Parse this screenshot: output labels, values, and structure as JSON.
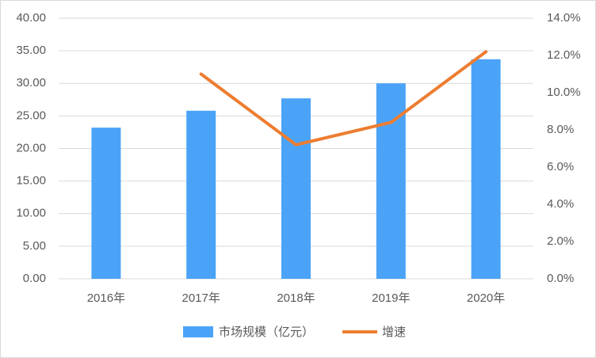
{
  "chart_data": {
    "type": "bar-line",
    "categories": [
      "2016年",
      "2017年",
      "2018年",
      "2019年",
      "2020年"
    ],
    "series": [
      {
        "name": "市场规模（亿元）",
        "type": "bar",
        "color": "#4aa3f7",
        "values": [
          23.2,
          25.8,
          27.7,
          30.0,
          33.7
        ]
      },
      {
        "name": "增速",
        "type": "line",
        "axis": "y2",
        "color": "#ed7d31",
        "values": [
          null,
          11.0,
          7.2,
          8.4,
          12.2
        ]
      }
    ],
    "ylim": [
      0,
      40
    ],
    "yticks": [
      {
        "value": 0,
        "label": "0.00"
      },
      {
        "value": 5,
        "label": "5.00"
      },
      {
        "value": 10,
        "label": "10.00"
      },
      {
        "value": 15,
        "label": "15.00"
      },
      {
        "value": 20,
        "label": "20.00"
      },
      {
        "value": 25,
        "label": "25.00"
      },
      {
        "value": 30,
        "label": "30.00"
      },
      {
        "value": 35,
        "label": "35.00"
      },
      {
        "value": 40,
        "label": "40.00"
      }
    ],
    "y2lim": [
      0,
      14
    ],
    "y2ticks": [
      {
        "value": 0,
        "label": "0.0%"
      },
      {
        "value": 2,
        "label": "2.0%"
      },
      {
        "value": 4,
        "label": "4.0%"
      },
      {
        "value": 6,
        "label": "6.0%"
      },
      {
        "value": 8,
        "label": "8.0%"
      },
      {
        "value": 10,
        "label": "10.0%"
      },
      {
        "value": 12,
        "label": "12.0%"
      },
      {
        "value": 14,
        "label": "14.0%"
      }
    ],
    "grid": true,
    "legend": "bottom"
  }
}
